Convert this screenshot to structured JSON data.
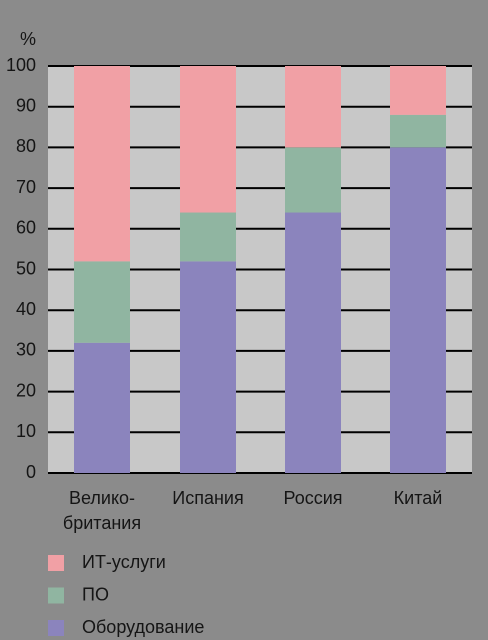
{
  "chart_data": {
    "type": "stacked_bar",
    "y_label": "%",
    "categories": [
      "Велико-\nбритания",
      "Испания",
      "Россия",
      "Китай"
    ],
    "series": [
      {
        "name": "Оборудование",
        "color": "#8b84bd",
        "values": [
          32,
          52,
          64,
          80
        ]
      },
      {
        "name": "ПО",
        "color": "#90b5a1",
        "values": [
          20,
          12,
          16,
          8
        ]
      },
      {
        "name": "ИТ-услуги",
        "color": "#f1a0a5",
        "values": [
          48,
          36,
          20,
          12
        ]
      }
    ],
    "ylim": [
      0,
      100
    ],
    "yticks": [
      0,
      10,
      20,
      30,
      40,
      50,
      60,
      70,
      80,
      90,
      100
    ],
    "grid": true
  }
}
